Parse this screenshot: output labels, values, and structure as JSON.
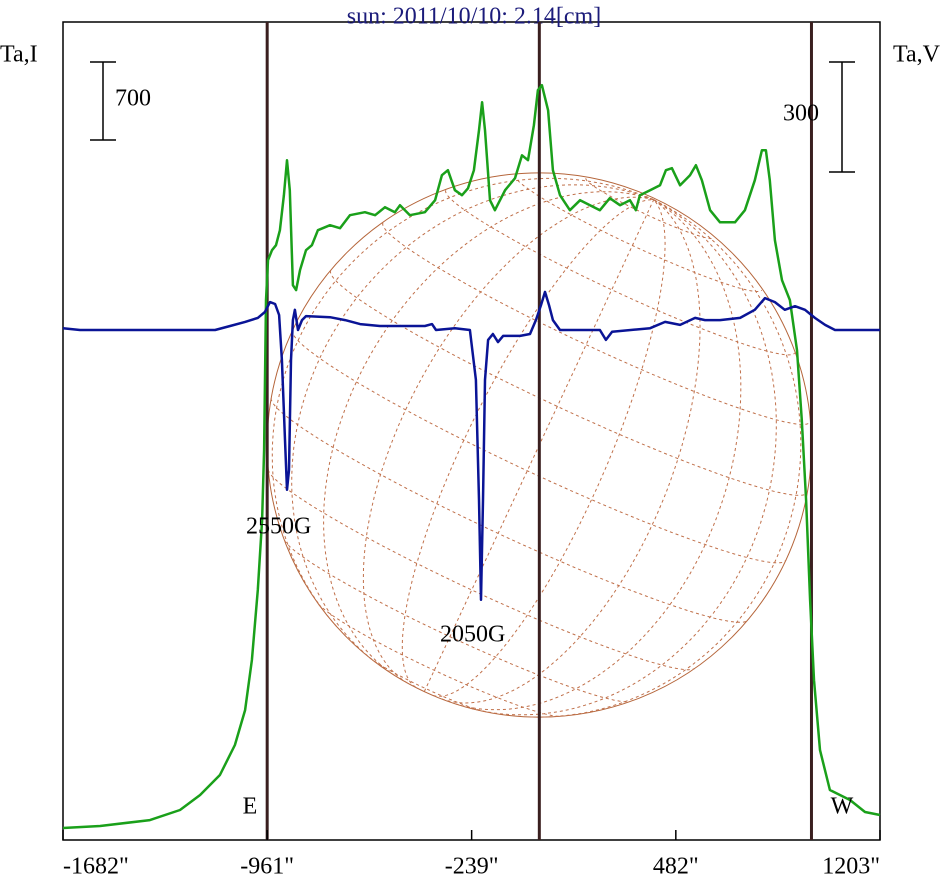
{
  "chart_data": {
    "type": "line",
    "title": "sun: 2011/10/10: 2.14[cm]",
    "y_label": "Ta,I",
    "y2_label": "Ta,V",
    "y_scale_bar": 700,
    "y2_scale_bar": 300,
    "xlim": [
      -1682,
      1203
    ],
    "ylim": [
      0,
      7340
    ],
    "y2lim": [
      -1391,
      840
    ],
    "xticks": [
      {
        "value": -1682,
        "label": "-1682\""
      },
      {
        "value": -961,
        "label": "-961\""
      },
      {
        "value": -239,
        "label": "-239\""
      },
      {
        "value": 482,
        "label": "482\""
      },
      {
        "value": 1203,
        "label": "1203\""
      }
    ],
    "limbs": [
      -961,
      0,
      961
    ],
    "limb_color": "#3a1f1f",
    "disk_color": "#b5653a",
    "annotations": [
      "2550G",
      "2050G",
      "E",
      "W"
    ],
    "series": [
      {
        "color": "#1aa01a",
        "axis": "y",
        "x": [
          -1682,
          -1551,
          -1375,
          -1269,
          -1198,
          -1128,
          -1075,
          -1039,
          -1015,
          -994,
          -979,
          -972,
          -965,
          -958,
          -944,
          -930,
          -916,
          -902,
          -891,
          -881,
          -870,
          -859,
          -845,
          -824,
          -803,
          -782,
          -739,
          -704,
          -669,
          -616,
          -580,
          -545,
          -510,
          -492,
          -457,
          -404,
          -368,
          -344,
          -323,
          -298,
          -273,
          -252,
          -231,
          -213,
          -202,
          -192,
          -174,
          -157,
          -121,
          -86,
          -61,
          -40,
          -19,
          -5,
          9,
          31,
          48,
          73,
          108,
          144,
          179,
          214,
          249,
          285,
          320,
          341,
          355,
          391,
          426,
          447,
          468,
          497,
          532,
          553,
          574,
          603,
          638,
          691,
          726,
          761,
          786,
          800,
          814,
          832,
          857,
          885,
          910,
          927,
          942,
          956,
          970,
          991,
          1026,
          1097,
          1150,
          1203
        ],
        "values": [
          108,
          126,
          179,
          269,
          404,
          583,
          852,
          1166,
          1615,
          2243,
          2870,
          3498,
          4844,
          5203,
          5292,
          5337,
          5472,
          5786,
          6100,
          5831,
          4978,
          4934,
          5113,
          5292,
          5337,
          5472,
          5517,
          5490,
          5606,
          5633,
          5606,
          5678,
          5633,
          5696,
          5606,
          5633,
          5741,
          5965,
          6010,
          5831,
          5786,
          5848,
          6010,
          6369,
          6620,
          6369,
          5741,
          5651,
          5831,
          5938,
          6144,
          6100,
          6414,
          6728,
          6773,
          6548,
          6010,
          5786,
          5651,
          5741,
          5696,
          5651,
          5759,
          5696,
          5741,
          5651,
          5786,
          5831,
          5875,
          6010,
          6028,
          5875,
          5965,
          6055,
          5920,
          5651,
          5543,
          5543,
          5651,
          5920,
          6189,
          6189,
          5920,
          5382,
          5023,
          4844,
          4395,
          3767,
          3050,
          2153,
          1435,
          807,
          449,
          359,
          251,
          224
        ]
      },
      {
        "color": "#0a1496",
        "axis": "y2",
        "x": [
          -1682,
          -1622,
          -1551,
          -1145,
          -1092,
          -1039,
          -994,
          -969,
          -951,
          -933,
          -919,
          -909,
          -898,
          -891,
          -884,
          -877,
          -870,
          -863,
          -852,
          -838,
          -824,
          -739,
          -686,
          -633,
          -563,
          -492,
          -404,
          -379,
          -365,
          -298,
          -245,
          -224,
          -213,
          -206,
          -199,
          -192,
          -181,
          -164,
          -146,
          -128,
          -68,
          -33,
          -12,
          6,
          20,
          34,
          48,
          73,
          214,
          235,
          257,
          391,
          444,
          497,
          550,
          585,
          638,
          709,
          761,
          797,
          832,
          867,
          903,
          938,
          973,
          1009,
          1044,
          1203
        ],
        "values": [
          5,
          0,
          0,
          0,
          11,
          22,
          33,
          49,
          76,
          71,
          41,
          -82,
          -300,
          -436,
          -382,
          -82,
          27,
          55,
          0,
          27,
          38,
          35,
          27,
          16,
          11,
          11,
          11,
          16,
          0,
          5,
          0,
          -136,
          -464,
          -736,
          -464,
          -136,
          -27,
          -11,
          -33,
          -16,
          -16,
          -11,
          27,
          68,
          104,
          68,
          27,
          0,
          0,
          -27,
          -5,
          5,
          22,
          14,
          33,
          27,
          27,
          33,
          55,
          87,
          76,
          55,
          65,
          55,
          33,
          14,
          0,
          0
        ]
      }
    ]
  }
}
